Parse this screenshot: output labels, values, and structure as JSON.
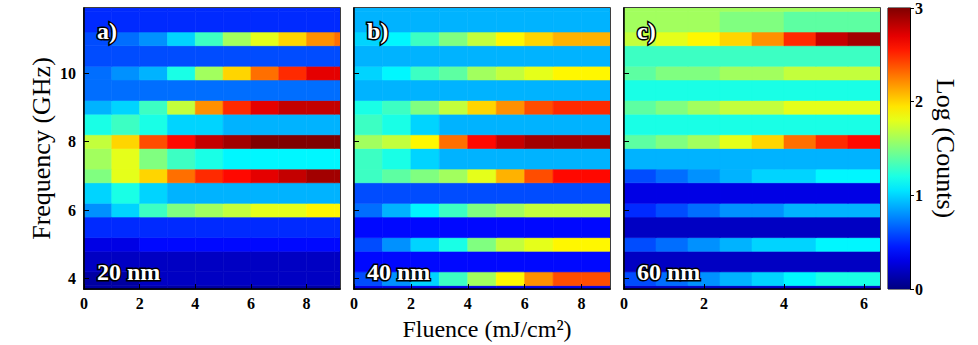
{
  "chart_data": {
    "type": "heatmap",
    "xlabel": "Fluence (mJ/cm²)",
    "ylabel": "Frequency (GHz)",
    "ylim": [
      3.7,
      11.9
    ],
    "yticks": [
      4,
      6,
      8,
      10
    ],
    "y_bins": [
      3.7,
      3.8,
      4.2,
      4.8,
      5.2,
      5.8,
      6.2,
      6.8,
      7.2,
      7.8,
      8.2,
      8.8,
      9.2,
      9.8,
      10.2,
      10.8,
      11.2,
      11.8,
      11.9
    ],
    "colorbar": {
      "label": "Log (Counts)",
      "range": [
        0,
        3
      ],
      "ticks": [
        0,
        1,
        2,
        3
      ]
    },
    "panels": [
      {
        "label": "a)",
        "annotation": "20 nm",
        "tick_labels": true,
        "xlim": [
          0,
          9.2
        ],
        "xticks": [
          0,
          2,
          4,
          6,
          8
        ],
        "x_bins": [
          0,
          1,
          2,
          3,
          4,
          5,
          6,
          7,
          8,
          9,
          9.2
        ],
        "cells": [
          [
            0.1,
            0.1,
            0.1,
            0.1,
            0.1,
            0.1,
            0.1,
            0.1,
            0.1,
            0.1
          ],
          [
            0.1,
            0.1,
            0.2,
            0.2,
            0.2,
            0.2,
            0.2,
            0.2,
            0.2,
            0.2
          ],
          [
            0.2,
            0.2,
            0.2,
            0.2,
            0.2,
            0.2,
            0.2,
            0.2,
            0.2,
            0.2
          ],
          [
            0.3,
            0.3,
            0.4,
            0.4,
            0.4,
            0.4,
            0.4,
            0.4,
            0.4,
            0.4
          ],
          [
            0.5,
            0.5,
            0.5,
            0.5,
            0.5,
            0.5,
            0.5,
            0.5,
            0.5,
            0.5
          ],
          [
            0.8,
            1.0,
            1.3,
            1.5,
            1.6,
            1.7,
            1.8,
            1.8,
            1.9,
            1.9
          ],
          [
            1.0,
            1.2,
            1.0,
            0.9,
            0.9,
            0.9,
            0.9,
            0.9,
            0.9,
            0.9
          ],
          [
            1.5,
            1.8,
            2.0,
            2.3,
            2.5,
            2.6,
            2.7,
            2.8,
            2.9,
            2.9
          ],
          [
            1.6,
            1.8,
            1.5,
            1.3,
            1.2,
            1.1,
            1.1,
            1.1,
            1.1,
            1.1
          ],
          [
            1.7,
            2.0,
            2.4,
            2.6,
            2.8,
            2.9,
            3.0,
            3.0,
            3.0,
            3.0
          ],
          [
            1.2,
            1.3,
            1.2,
            1.0,
            1.0,
            0.9,
            0.9,
            0.9,
            0.9,
            0.9
          ],
          [
            0.9,
            1.0,
            1.3,
            1.7,
            2.2,
            2.5,
            2.7,
            2.8,
            2.8,
            2.8
          ],
          [
            0.7,
            0.7,
            0.7,
            0.7,
            0.7,
            0.7,
            0.7,
            0.7,
            0.7,
            0.7
          ],
          [
            0.7,
            0.8,
            0.9,
            1.2,
            1.6,
            2.0,
            2.3,
            2.5,
            2.7,
            2.7
          ],
          [
            0.6,
            0.6,
            0.6,
            0.6,
            0.6,
            0.6,
            0.6,
            0.6,
            0.6,
            0.6
          ],
          [
            0.6,
            0.7,
            0.8,
            1.0,
            1.3,
            1.6,
            1.8,
            2.0,
            2.2,
            2.3
          ],
          [
            0.5,
            0.5,
            0.5,
            0.5,
            0.5,
            0.5,
            0.5,
            0.5,
            0.5,
            0.5
          ],
          [
            0.5,
            0.5,
            0.5,
            0.5,
            0.5,
            0.5,
            0.5,
            0.5,
            0.5,
            0.5
          ]
        ]
      },
      {
        "label": "b)",
        "annotation": "40 nm",
        "tick_labels": "x",
        "xlim": [
          0,
          9
        ],
        "xticks": [
          0,
          2,
          4,
          6,
          8
        ],
        "x_bins": [
          0,
          1,
          2,
          3,
          4,
          5,
          6,
          7,
          8,
          9
        ],
        "cells": [
          [
            0.3,
            0.3,
            0.3,
            0.3,
            0.3,
            0.3,
            0.3,
            0.3,
            0.3
          ],
          [
            0.6,
            0.8,
            1.0,
            1.3,
            1.6,
            1.9,
            2.2,
            2.4,
            2.4
          ],
          [
            0.4,
            0.4,
            0.4,
            0.4,
            0.4,
            0.4,
            0.4,
            0.4,
            0.4
          ],
          [
            0.6,
            0.8,
            1.0,
            1.2,
            1.5,
            1.7,
            1.8,
            1.9,
            1.9
          ],
          [
            0.4,
            0.4,
            0.4,
            0.4,
            0.4,
            0.4,
            0.4,
            0.4,
            0.4
          ],
          [
            0.7,
            0.9,
            1.1,
            1.3,
            1.5,
            1.6,
            1.7,
            1.7,
            1.7
          ],
          [
            0.6,
            0.6,
            0.6,
            0.6,
            0.6,
            0.6,
            0.6,
            0.6,
            0.6
          ],
          [
            1.3,
            1.4,
            1.5,
            1.6,
            1.8,
            2.1,
            2.4,
            2.6,
            2.6
          ],
          [
            1.3,
            1.2,
            1.0,
            0.9,
            0.9,
            0.9,
            0.9,
            0.9,
            0.9
          ],
          [
            1.6,
            1.7,
            1.9,
            2.3,
            2.6,
            2.8,
            2.9,
            2.9,
            2.9
          ],
          [
            1.3,
            1.2,
            1.0,
            0.9,
            0.9,
            0.9,
            0.9,
            0.9,
            0.9
          ],
          [
            1.2,
            1.3,
            1.5,
            1.7,
            2.0,
            2.2,
            2.4,
            2.5,
            2.5
          ],
          [
            0.9,
            0.9,
            0.9,
            0.9,
            0.9,
            0.9,
            0.9,
            0.9,
            0.9
          ],
          [
            1.0,
            1.1,
            1.3,
            1.4,
            1.6,
            1.7,
            1.8,
            1.9,
            1.9
          ],
          [
            0.9,
            0.9,
            0.9,
            0.9,
            0.9,
            0.9,
            0.9,
            0.9,
            0.9
          ],
          [
            1.0,
            1.1,
            1.3,
            1.5,
            1.7,
            1.9,
            2.0,
            2.1,
            2.1
          ],
          [
            0.9,
            0.9,
            0.9,
            0.9,
            0.9,
            0.9,
            0.9,
            0.9,
            0.9
          ],
          [
            0.9,
            0.9,
            0.9,
            0.9,
            0.9,
            0.9,
            0.9,
            0.9,
            0.9
          ]
        ]
      },
      {
        "label": "c)",
        "annotation": "60 nm",
        "tick_labels": "x",
        "xlim": [
          0,
          6.4
        ],
        "xticks": [
          0,
          2,
          4,
          6
        ],
        "x_bins": [
          0,
          0.8,
          1.6,
          2.4,
          3.2,
          4,
          4.8,
          5.6,
          6.4
        ],
        "cells": [
          [
            0.2,
            0.2,
            0.2,
            0.2,
            0.2,
            0.2,
            0.2,
            0.2
          ],
          [
            0.6,
            0.7,
            0.8,
            0.9,
            1.0,
            1.1,
            1.2,
            1.2
          ],
          [
            0.2,
            0.2,
            0.2,
            0.2,
            0.2,
            0.2,
            0.2,
            0.2
          ],
          [
            0.6,
            0.7,
            0.8,
            0.9,
            1.0,
            1.0,
            1.1,
            1.1
          ],
          [
            0.2,
            0.2,
            0.2,
            0.2,
            0.2,
            0.2,
            0.2,
            0.2
          ],
          [
            0.5,
            0.6,
            0.7,
            0.8,
            0.8,
            0.9,
            0.9,
            0.9
          ],
          [
            0.3,
            0.3,
            0.3,
            0.3,
            0.3,
            0.3,
            0.3,
            0.3
          ],
          [
            0.6,
            0.7,
            0.8,
            0.9,
            1.0,
            1.0,
            1.1,
            1.1
          ],
          [
            0.9,
            0.9,
            0.9,
            0.9,
            0.9,
            0.9,
            0.9,
            0.9
          ],
          [
            1.4,
            1.5,
            1.6,
            1.8,
            2.0,
            2.3,
            2.5,
            2.6
          ],
          [
            1.2,
            1.2,
            1.2,
            1.2,
            1.2,
            1.2,
            1.2,
            1.2
          ],
          [
            1.4,
            1.5,
            1.6,
            1.7,
            1.7,
            1.8,
            1.8,
            1.8
          ],
          [
            1.2,
            1.2,
            1.2,
            1.2,
            1.2,
            1.2,
            1.2,
            1.2
          ],
          [
            1.4,
            1.5,
            1.5,
            1.6,
            1.6,
            1.7,
            1.7,
            1.7
          ],
          [
            1.3,
            1.3,
            1.3,
            1.3,
            1.3,
            1.3,
            1.3,
            1.3
          ],
          [
            1.7,
            1.8,
            1.9,
            2.0,
            2.2,
            2.5,
            2.8,
            2.9
          ],
          [
            1.6,
            1.6,
            1.6,
            1.5,
            1.5,
            1.4,
            1.4,
            1.4
          ],
          [
            1.6,
            1.6,
            1.6,
            1.6,
            1.6,
            1.6,
            1.6,
            1.6
          ]
        ]
      }
    ]
  }
}
